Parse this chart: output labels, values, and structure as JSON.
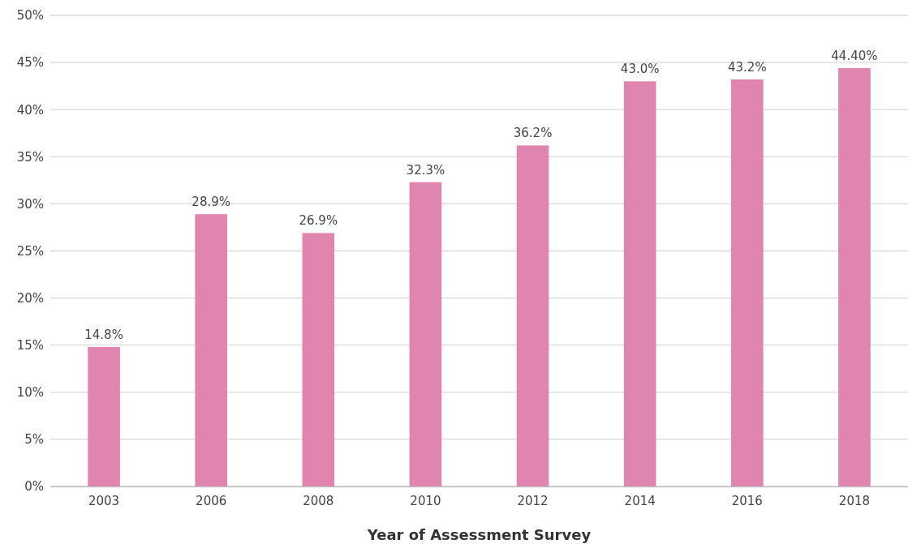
{
  "chart_data": {
    "type": "bar",
    "xlabel": "Year of Assessment Survey",
    "categories": [
      "2003",
      "2006",
      "2008",
      "2010",
      "2012",
      "2014",
      "2016",
      "2018"
    ],
    "values": [
      14.8,
      28.9,
      26.9,
      32.3,
      36.2,
      43.0,
      43.2,
      44.4
    ],
    "value_labels": [
      "14.8%",
      "28.9%",
      "26.9%",
      "32.3%",
      "36.2%",
      "43.0%",
      "43.2%",
      "44.40%"
    ],
    "color": "#e085b0",
    "ylim": [
      0,
      50
    ],
    "yticks": [
      {
        "value": 0,
        "label": "0%"
      },
      {
        "value": 5,
        "label": "5%"
      },
      {
        "value": 10,
        "label": "10%"
      },
      {
        "value": 15,
        "label": "15%"
      },
      {
        "value": 20,
        "label": "20%"
      },
      {
        "value": 25,
        "label": "25%"
      },
      {
        "value": 30,
        "label": "30%"
      },
      {
        "value": 35,
        "label": "35%"
      },
      {
        "value": 40,
        "label": "40%"
      },
      {
        "value": 45,
        "label": "45%"
      },
      {
        "value": 50,
        "label": "50%"
      }
    ],
    "grid": "y"
  }
}
